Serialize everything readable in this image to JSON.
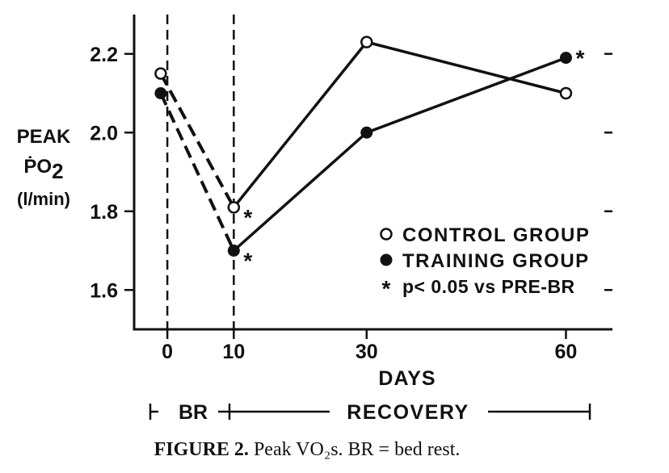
{
  "chart_data": {
    "type": "line",
    "ylabel_lines": [
      "PEAK",
      "ṖO",
      "2",
      "(l/min)"
    ],
    "xlabel": "DAYS",
    "x": [
      0,
      10,
      30,
      60
    ],
    "x_ticks": [
      "0",
      "10",
      "30",
      "60"
    ],
    "y_ticks": [
      "1.6",
      "1.8",
      "2.0",
      "2.2"
    ],
    "xlim": [
      -5,
      67
    ],
    "ylim": [
      1.5,
      2.3
    ],
    "series": [
      {
        "name": "CONTROL GROUP",
        "marker": "open-circle",
        "points": [
          {
            "x": -1,
            "y": 2.15
          },
          {
            "x": 10,
            "y": 1.81,
            "significant": true
          },
          {
            "x": 30,
            "y": 2.23
          },
          {
            "x": 60,
            "y": 2.1
          }
        ]
      },
      {
        "name": "TRAINING GROUP",
        "marker": "filled-circle",
        "points": [
          {
            "x": -1,
            "y": 2.1
          },
          {
            "x": 10,
            "y": 1.7,
            "significant": true
          },
          {
            "x": 30,
            "y": 2.0
          },
          {
            "x": 60,
            "y": 2.19,
            "significant": true
          }
        ]
      }
    ],
    "bed_rest_segment": "dashed",
    "vertical_lines_at": [
      0,
      10
    ],
    "significance_symbol": "*",
    "legend": {
      "placement": "bottom-right",
      "items": [
        "CONTROL GROUP",
        "TRAINING GROUP"
      ],
      "note": "p< 0.05 vs PRE-BR"
    },
    "phases": [
      {
        "label": "BR",
        "from": -1,
        "to": 10
      },
      {
        "label": "RECOVERY",
        "from": 10,
        "to": 60
      }
    ],
    "grid": false
  },
  "caption": {
    "number": "FIGURE 2.",
    "text": " Peak VO₂s. BR = bed rest."
  }
}
